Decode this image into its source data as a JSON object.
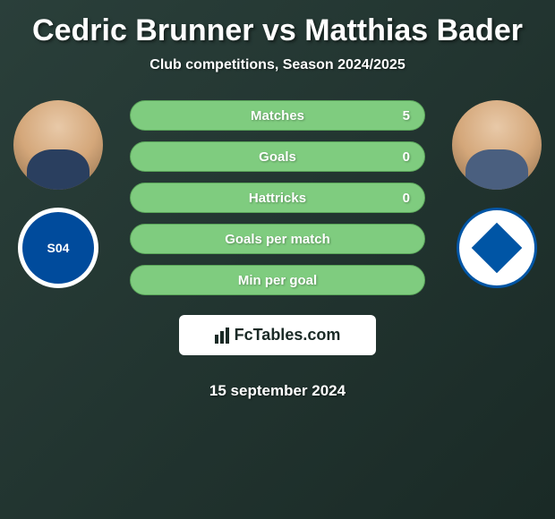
{
  "header": {
    "title": "Cedric Brunner vs Matthias Bader",
    "subtitle": "Club competitions, Season 2024/2025"
  },
  "player_left": {
    "name": "Cedric Brunner",
    "club_name": "Schalke 04",
    "club_short": "S04",
    "club_bg_color": "#ffffff",
    "club_primary_color": "#004b9c"
  },
  "player_right": {
    "name": "Matthias Bader",
    "club_name": "Darmstadt",
    "club_bg_color": "#ffffff",
    "club_primary_color": "#0055a5"
  },
  "stats": {
    "bar_bg_color": "#7fcc7f",
    "bar_border_color": "#5aa55a",
    "text_color": "#ffffff",
    "rows": [
      {
        "label": "Matches",
        "value": "5"
      },
      {
        "label": "Goals",
        "value": "0"
      },
      {
        "label": "Hattricks",
        "value": "0"
      },
      {
        "label": "Goals per match",
        "value": ""
      },
      {
        "label": "Min per goal",
        "value": ""
      }
    ]
  },
  "footer": {
    "brand": "FcTables.com",
    "date": "15 september 2024"
  },
  "colors": {
    "bg_gradient_start": "#2a3f3a",
    "bg_gradient_end": "#1a2a26",
    "title_color": "#ffffff"
  }
}
